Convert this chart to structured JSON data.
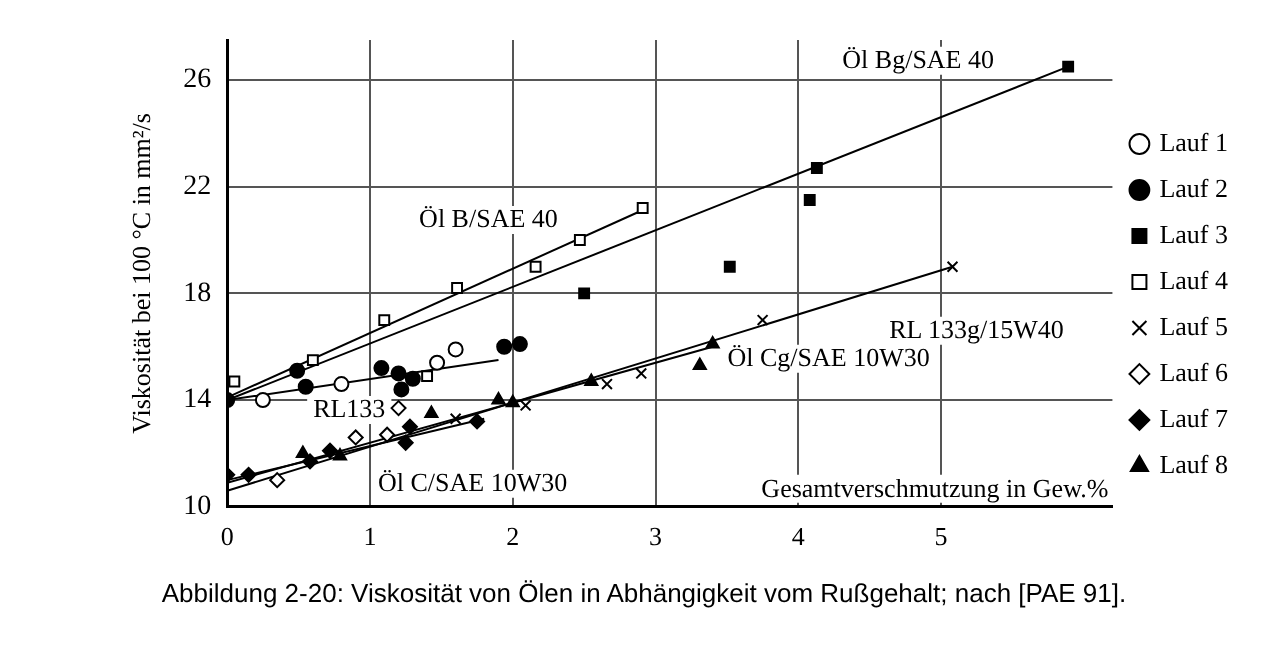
{
  "chart_data": {
    "type": "scatter",
    "xlabel": "Gesamtverschmutzung in Gew.%",
    "ylabel": "Viskosität bei 100 °C in mm²/s",
    "xlim": [
      0,
      6.2
    ],
    "ylim": [
      10,
      27.5
    ],
    "xticks": [
      0,
      1,
      2,
      3,
      4,
      5
    ],
    "yticks": [
      10,
      14,
      18,
      22,
      26
    ],
    "grid": true,
    "legend": "right",
    "series": [
      {
        "name": "Lauf 1",
        "color": "#000000",
        "marker": "circle-open",
        "x": [
          0.25,
          0.8,
          1.47,
          1.6
        ],
        "values": [
          14.0,
          14.6,
          15.4,
          15.9
        ]
      },
      {
        "name": "Lauf 2",
        "color": "#000000",
        "marker": "circle",
        "x": [
          0,
          0.49,
          0.55,
          1.08,
          1.2,
          1.22,
          1.3,
          1.94,
          2.05
        ],
        "values": [
          14.0,
          15.1,
          14.5,
          15.2,
          15.0,
          14.4,
          14.8,
          16.0,
          16.1
        ]
      },
      {
        "name": "Lauf 3",
        "color": "#000000",
        "marker": "square",
        "x": [
          2.5,
          3.52,
          4.08,
          4.13,
          5.89
        ],
        "values": [
          18.0,
          19.0,
          21.5,
          22.7,
          26.5
        ]
      },
      {
        "name": "Lauf 4",
        "color": "#000000",
        "marker": "square-open",
        "x": [
          0.05,
          0.6,
          1.1,
          1.4,
          1.61,
          2.16,
          2.47,
          2.91
        ],
        "values": [
          14.7,
          15.5,
          17.0,
          14.9,
          18.2,
          19.0,
          20.0,
          21.2
        ]
      },
      {
        "name": "Lauf 5",
        "color": "#000000",
        "marker": "cross",
        "x": [
          1.6,
          2.09,
          2.66,
          2.9,
          3.75,
          5.08
        ],
        "values": [
          13.3,
          13.8,
          14.6,
          15.0,
          17.0,
          19.0
        ]
      },
      {
        "name": "Lauf 6",
        "color": "#000000",
        "marker": "diamond-open",
        "x": [
          0.35,
          0.9,
          1.12,
          1.2
        ],
        "values": [
          11.0,
          12.6,
          12.7,
          13.7
        ]
      },
      {
        "name": "Lauf 7",
        "color": "#000000",
        "marker": "diamond",
        "x": [
          0,
          0.15,
          0.58,
          0.72,
          1.25,
          1.28,
          1.75
        ],
        "values": [
          11.2,
          11.2,
          11.7,
          12.1,
          12.4,
          13.0,
          13.2
        ]
      },
      {
        "name": "Lauf 8",
        "color": "#000000",
        "marker": "triangle",
        "x": [
          0.53,
          0.79,
          1.43,
          1.9,
          2.0,
          2.55,
          3.31,
          3.4
        ],
        "values": [
          12.0,
          11.9,
          13.5,
          14.0,
          13.9,
          14.7,
          15.3,
          16.1
        ]
      },
      {
        "name": "Öl B/SAE 40",
        "type": "line",
        "color": "#000000",
        "marker": "none",
        "x": [
          0,
          2.9
        ],
        "values": [
          14.1,
          21.1
        ]
      },
      {
        "name": "Öl Bg/SAE 40",
        "type": "line",
        "color": "#000000",
        "marker": "none",
        "x": [
          0,
          5.89
        ],
        "values": [
          14.0,
          26.5
        ]
      },
      {
        "name": "RL133",
        "type": "line",
        "color": "#000000",
        "marker": "none",
        "x": [
          0,
          1.9
        ],
        "values": [
          14.0,
          15.5
        ]
      },
      {
        "name": "RL 133g/15W40",
        "type": "line",
        "color": "#000000",
        "marker": "none",
        "x": [
          0,
          5.08
        ],
        "values": [
          10.6,
          19.0
        ]
      },
      {
        "name": "Öl Cg/SAE 10W30",
        "type": "line",
        "color": "#000000",
        "marker": "none",
        "x": [
          0,
          3.4
        ],
        "values": [
          10.9,
          16.0
        ]
      },
      {
        "name": "Öl C/SAE 10W30",
        "type": "line",
        "color": "#000000",
        "marker": "none",
        "x": [
          0,
          1.8
        ],
        "values": [
          11.0,
          13.3
        ]
      }
    ],
    "annotations": [
      "Abbildung 2-20: Viskosität von Ölen in Abhängigkeit vom Rußgehalt; nach [PAE 91]."
    ]
  }
}
